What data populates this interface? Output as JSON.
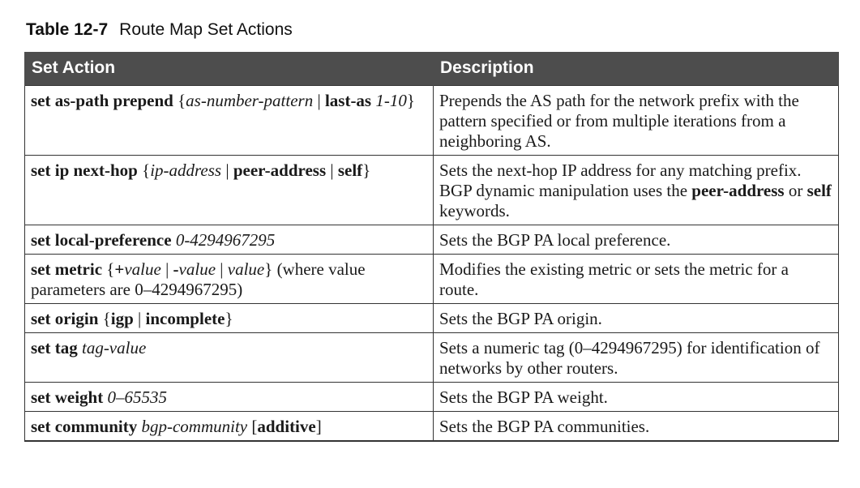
{
  "caption": {
    "number": "Table 12-7",
    "title": "Route Map Set Actions"
  },
  "headers": {
    "action": "Set Action",
    "description": "Description"
  },
  "rows": [
    {
      "action": [
        {
          "t": "set as-path prepend",
          "s": "k"
        },
        {
          "t": " {",
          "s": "n"
        },
        {
          "t": "as-number-pattern",
          "s": "a"
        },
        {
          "t": " | ",
          "s": "n"
        },
        {
          "t": "last-as",
          "s": "k"
        },
        {
          "t": " ",
          "s": "n"
        },
        {
          "t": "1-10",
          "s": "a"
        },
        {
          "t": "}",
          "s": "n"
        }
      ],
      "description": [
        {
          "t": "Prepends the AS path for the network prefix with the pattern specified or from multiple iterations from a neighboring AS.",
          "s": "n"
        }
      ]
    },
    {
      "action": [
        {
          "t": "set ip next-hop",
          "s": "k"
        },
        {
          "t": " {",
          "s": "n"
        },
        {
          "t": "ip-address",
          "s": "a"
        },
        {
          "t": " | ",
          "s": "n"
        },
        {
          "t": "peer-address",
          "s": "k"
        },
        {
          "t": " | ",
          "s": "n"
        },
        {
          "t": "self",
          "s": "k"
        },
        {
          "t": "}",
          "s": "n"
        }
      ],
      "description": [
        {
          "t": "Sets the next-hop IP address for any matching prefix. BGP dynamic manipulation uses the ",
          "s": "n"
        },
        {
          "t": "peer-address",
          "s": "k"
        },
        {
          "t": " or ",
          "s": "n"
        },
        {
          "t": "self",
          "s": "k"
        },
        {
          "t": " keywords.",
          "s": "n"
        }
      ]
    },
    {
      "action": [
        {
          "t": "set local-preference",
          "s": "k"
        },
        {
          "t": " ",
          "s": "n"
        },
        {
          "t": "0-4294967295",
          "s": "a"
        }
      ],
      "description": [
        {
          "t": "Sets the BGP PA local preference.",
          "s": "n"
        }
      ]
    },
    {
      "action": [
        {
          "t": "set metric",
          "s": "k"
        },
        {
          "t": " {",
          "s": "n"
        },
        {
          "t": "+",
          "s": "k"
        },
        {
          "t": "value",
          "s": "a"
        },
        {
          "t": " | ",
          "s": "n"
        },
        {
          "t": "-",
          "s": "k"
        },
        {
          "t": "value",
          "s": "a"
        },
        {
          "t": " | ",
          "s": "n"
        },
        {
          "t": "value",
          "s": "a"
        },
        {
          "t": "} (where value parameters are 0–4294967295)",
          "s": "n"
        }
      ],
      "description": [
        {
          "t": "Modifies the existing metric or sets the metric for a route.",
          "s": "n"
        }
      ]
    },
    {
      "action": [
        {
          "t": "set origin",
          "s": "k"
        },
        {
          "t": " {",
          "s": "n"
        },
        {
          "t": "igp",
          "s": "k"
        },
        {
          "t": " | ",
          "s": "n"
        },
        {
          "t": "incomplete",
          "s": "k"
        },
        {
          "t": "}",
          "s": "n"
        }
      ],
      "description": [
        {
          "t": "Sets the BGP PA origin.",
          "s": "n"
        }
      ]
    },
    {
      "action": [
        {
          "t": "set tag",
          "s": "k"
        },
        {
          "t": " ",
          "s": "n"
        },
        {
          "t": "tag-value",
          "s": "a"
        }
      ],
      "description": [
        {
          "t": "Sets a numeric tag (0–4294967295) for identification of networks by other routers.",
          "s": "n"
        }
      ]
    },
    {
      "action": [
        {
          "t": "set weight",
          "s": "k"
        },
        {
          "t": " ",
          "s": "n"
        },
        {
          "t": "0–65535",
          "s": "a"
        }
      ],
      "description": [
        {
          "t": "Sets the BGP PA weight.",
          "s": "n"
        }
      ]
    },
    {
      "action": [
        {
          "t": "set community",
          "s": "k"
        },
        {
          "t": " ",
          "s": "n"
        },
        {
          "t": "bgp-community",
          "s": "a"
        },
        {
          "t": " [",
          "s": "n"
        },
        {
          "t": "additive",
          "s": "k"
        },
        {
          "t": "]",
          "s": "n"
        }
      ],
      "description": [
        {
          "t": "Sets the BGP PA communities.",
          "s": "n"
        }
      ]
    }
  ]
}
